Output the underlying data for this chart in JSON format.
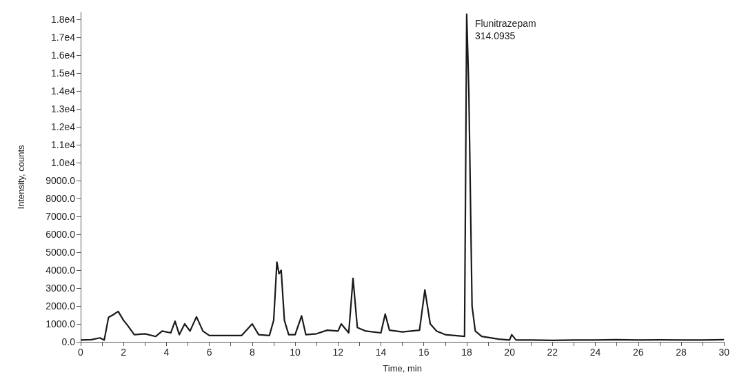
{
  "chart_data": {
    "type": "line",
    "xlabel": "Time, min",
    "ylabel": "Intensity, counts",
    "annotations": [
      {
        "text": "Flunitrazepam\n314.0935",
        "x": 18,
        "y": 18300
      }
    ],
    "xlim": [
      0,
      30
    ],
    "ylim": [
      0,
      18400
    ],
    "xticks": [
      0,
      {
        "value": 1,
        "label": null
      },
      2,
      {
        "value": 3,
        "label": null
      },
      4,
      {
        "value": 5,
        "label": null
      },
      6,
      {
        "value": 7,
        "label": null
      },
      8,
      {
        "value": 9,
        "label": null
      },
      10,
      {
        "value": 11,
        "label": null
      },
      12,
      {
        "value": 13,
        "label": null
      },
      14,
      {
        "value": 15,
        "label": null
      },
      16,
      {
        "value": 17,
        "label": null
      },
      18,
      {
        "value": 19,
        "label": null
      },
      20,
      {
        "value": 21,
        "label": null
      },
      22,
      {
        "value": 23,
        "label": null
      },
      24,
      {
        "value": 25,
        "label": null
      },
      26,
      {
        "value": 27,
        "label": null
      },
      28,
      {
        "value": 29,
        "label": null
      },
      30
    ],
    "yticks": [
      {
        "value": 0,
        "label": "0.0"
      },
      {
        "value": 1000,
        "label": "1000.0"
      },
      {
        "value": 2000,
        "label": "2000.0"
      },
      {
        "value": 3000,
        "label": "3000.0"
      },
      {
        "value": 4000,
        "label": "4000.0"
      },
      {
        "value": 5000,
        "label": "5000.0"
      },
      {
        "value": 6000,
        "label": "6000.0"
      },
      {
        "value": 7000,
        "label": "7000.0"
      },
      {
        "value": 8000,
        "label": "8000.0"
      },
      {
        "value": 9000,
        "label": "9000.0"
      },
      {
        "value": 10000,
        "label": "1.0e4"
      },
      {
        "value": 11000,
        "label": "1.1e4"
      },
      {
        "value": 12000,
        "label": "1.2e4"
      },
      {
        "value": 13000,
        "label": "1.3e4"
      },
      {
        "value": 14000,
        "label": "1.4e4"
      },
      {
        "value": 15000,
        "label": "1.5e4"
      },
      {
        "value": 16000,
        "label": "1.6e4"
      },
      {
        "value": 17000,
        "label": "1.7e4"
      },
      {
        "value": 18000,
        "label": "1.8e4"
      }
    ],
    "grid": false,
    "marker": "none",
    "line_style": "solid",
    "series": [
      {
        "color": "#1a1a1a",
        "x": [
          0,
          0.5,
          0.9,
          1.1,
          1.3,
          1.5,
          1.75,
          2.0,
          2.2,
          2.5,
          3.0,
          3.5,
          3.8,
          4.2,
          4.4,
          4.6,
          4.85,
          5.1,
          5.4,
          5.7,
          6,
          6.5,
          7,
          7.5,
          8.0,
          8.3,
          8.8,
          9.0,
          9.15,
          9.25,
          9.35,
          9.5,
          9.7,
          10,
          10.3,
          10.5,
          11,
          11.5,
          12.0,
          12.15,
          12.5,
          12.7,
          12.9,
          13.3,
          14.0,
          14.2,
          14.4,
          15,
          15.8,
          16.05,
          16.3,
          16.6,
          17,
          17.9,
          18.0,
          18.1,
          18.25,
          18.4,
          18.7,
          19.5,
          20,
          20.1,
          20.3,
          21,
          22,
          23,
          24,
          25,
          26,
          27,
          28,
          29,
          30
        ],
        "values": [
          100,
          120,
          220,
          100,
          1370,
          1500,
          1700,
          1200,
          900,
          400,
          450,
          300,
          600,
          500,
          1150,
          400,
          1000,
          600,
          1400,
          600,
          350,
          350,
          350,
          350,
          1000,
          400,
          350,
          1200,
          4450,
          3800,
          4000,
          1200,
          400,
          400,
          1450,
          400,
          450,
          650,
          600,
          1000,
          500,
          3550,
          800,
          600,
          500,
          1550,
          650,
          550,
          650,
          2900,
          1000,
          600,
          400,
          300,
          18300,
          14000,
          2000,
          600,
          300,
          150,
          100,
          400,
          100,
          100,
          80,
          100,
          100,
          120,
          100,
          110,
          100,
          100,
          120
        ]
      }
    ]
  }
}
